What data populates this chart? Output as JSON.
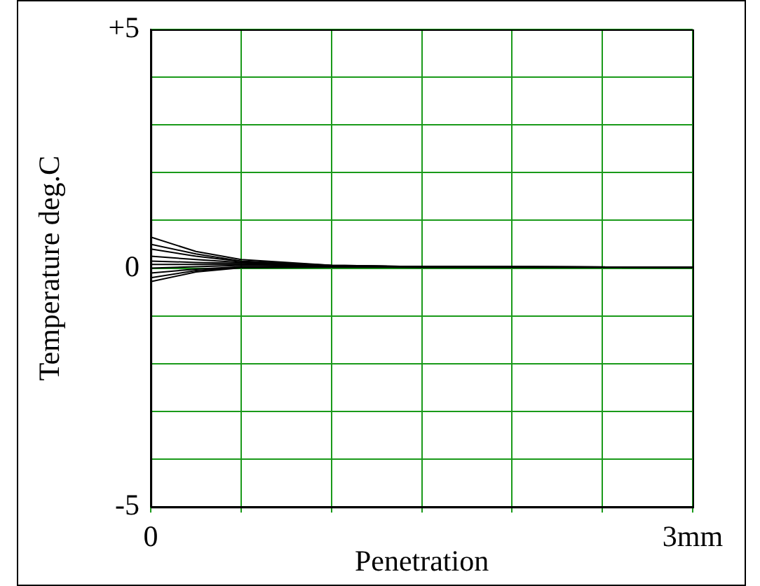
{
  "chart_data": {
    "type": "line",
    "xlabel": "Penetration",
    "ylabel": "Temperature deg.C",
    "x": [
      0,
      0.25,
      0.5,
      1,
      1.5,
      3
    ],
    "series": [
      {
        "color": "#000000",
        "values": [
          0.65,
          0.35,
          0.18,
          0.06,
          0.03,
          0.02
        ]
      },
      {
        "color": "#000000",
        "values": [
          0.5,
          0.3,
          0.15,
          0.06,
          0.03,
          0.02
        ]
      },
      {
        "color": "#000000",
        "values": [
          0.4,
          0.25,
          0.14,
          0.05,
          0.03,
          0.02
        ]
      },
      {
        "color": "#000000",
        "values": [
          0.25,
          0.18,
          0.12,
          0.05,
          0.03,
          0.02
        ]
      },
      {
        "color": "#000000",
        "values": [
          0.15,
          0.12,
          0.1,
          0.05,
          0.03,
          0.02
        ]
      },
      {
        "color": "#000000",
        "values": [
          0.08,
          0.08,
          0.08,
          0.04,
          0.03,
          0.02
        ]
      },
      {
        "color": "#000000",
        "values": [
          0,
          0.03,
          0.06,
          0.04,
          0.03,
          0.02
        ]
      },
      {
        "color": "#000000",
        "values": [
          -0.1,
          -0.02,
          0.03,
          0.03,
          0.02,
          0.02
        ]
      },
      {
        "color": "#000000",
        "values": [
          -0.2,
          -0.05,
          0.02,
          0.03,
          0.02,
          0.02
        ]
      },
      {
        "color": "#000000",
        "values": [
          -0.28,
          -0.08,
          0.01,
          0.02,
          0.02,
          0.02
        ]
      }
    ],
    "xlim": [
      0,
      3
    ],
    "xticks": [
      0,
      {
        "value": 0.5,
        "label": null
      },
      {
        "value": 1,
        "label": null
      },
      {
        "value": 1.5,
        "label": null
      },
      {
        "value": 2,
        "label": null
      },
      {
        "value": 2.5,
        "label": null
      },
      {
        "value": 3,
        "label": "3mm"
      }
    ],
    "ylim": [
      -5,
      5
    ],
    "yticks": [
      {
        "value": -5,
        "label": "-5"
      },
      {
        "value": -4,
        "label": null
      },
      {
        "value": -3,
        "label": null
      },
      {
        "value": -2,
        "label": null
      },
      {
        "value": -1,
        "label": null
      },
      0,
      {
        "value": 1,
        "label": null
      },
      {
        "value": 2,
        "label": null
      },
      {
        "value": 3,
        "label": null
      },
      {
        "value": 4,
        "label": null
      },
      {
        "value": 5,
        "label": "+5"
      }
    ],
    "grid": true,
    "legend": false,
    "marker": "none",
    "line_style": "solid"
  }
}
